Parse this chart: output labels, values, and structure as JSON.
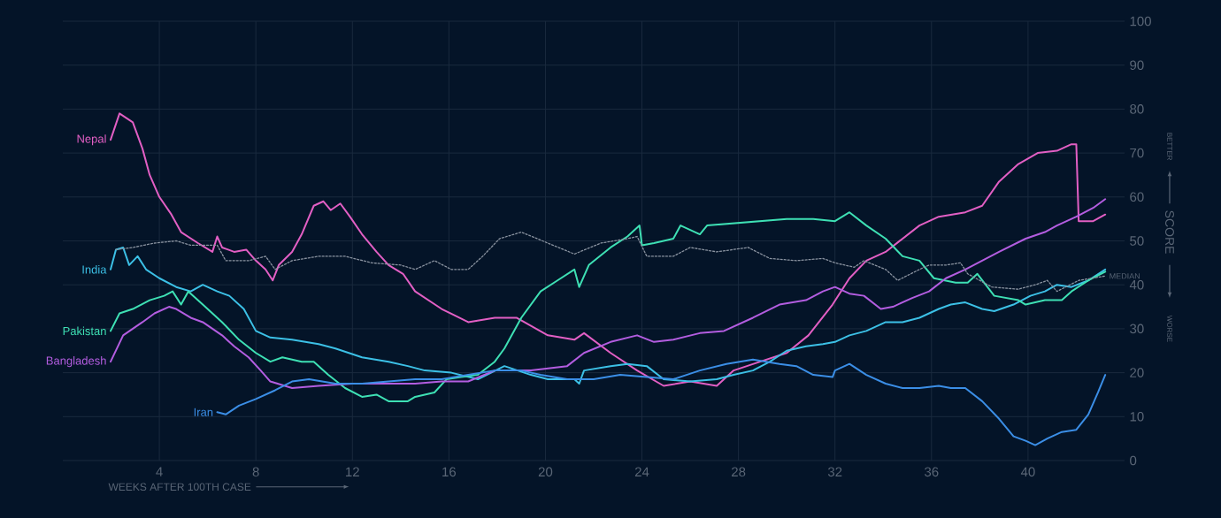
{
  "chart_data": {
    "type": "line",
    "xlabel": "WEEKS AFTER 100TH CASE",
    "ylabel": "SCORE",
    "annotations": [
      "BETTER",
      "WORSE"
    ],
    "xlim": [
      0,
      44
    ],
    "ylim": [
      0,
      100
    ],
    "xticks": [
      4,
      8,
      12,
      16,
      20,
      24,
      28,
      32,
      36,
      40
    ],
    "yticks": [
      0,
      10,
      20,
      30,
      40,
      50,
      60,
      70,
      80,
      90,
      100
    ],
    "grid": true,
    "legend": false,
    "marker": "none",
    "series": [
      {
        "name": "MEDIAN",
        "color": "#8a93a0",
        "line_style": "dotted",
        "x": [
          2.2,
          2.9,
          3.8,
          4.7,
          5.3,
          6.4,
          6.75,
          7.7,
          8.4,
          8.8,
          9.5,
          10.6,
          11.7,
          12.8,
          14.0,
          14.6,
          15.4,
          16.1,
          16.8,
          17.4,
          18.1,
          19.0,
          20.1,
          21.2,
          22.3,
          23.4,
          23.8,
          24.2,
          25.3,
          26.0,
          27.1,
          28.4,
          29.3,
          30.4,
          31.5,
          32.0,
          32.8,
          33.2,
          34.1,
          34.6,
          35.5,
          35.9,
          36.6,
          37.2,
          37.5,
          38.5,
          39.6,
          40.3,
          40.8,
          41.2,
          42.1,
          43.2
        ],
        "values": [
          48,
          48.5,
          49.5,
          50,
          49,
          49,
          45.5,
          45.5,
          46.5,
          43.5,
          45.5,
          46.5,
          46.5,
          45,
          44.5,
          43.5,
          45.5,
          43.5,
          43.5,
          46.5,
          50.5,
          52,
          49.5,
          47,
          49.5,
          50.5,
          51,
          46.5,
          46.5,
          48.5,
          47.5,
          48.5,
          46,
          45.5,
          46,
          45,
          44,
          45.5,
          43.5,
          41,
          43.5,
          44.5,
          44.5,
          45,
          42.5,
          39.5,
          39,
          40,
          41,
          38.5,
          41,
          42
        ]
      },
      {
        "name": "Nepal",
        "color": "#e25fc4",
        "line_style": "solid",
        "x": [
          1.98,
          2.35,
          2.9,
          3.3,
          3.6,
          4.0,
          4.5,
          4.9,
          5.6,
          6.2,
          6.4,
          6.6,
          7.1,
          7.6,
          8.0,
          8.4,
          8.7,
          8.95,
          9.5,
          9.9,
          10.4,
          10.8,
          11.1,
          11.5,
          11.9,
          12.4,
          13.0,
          13.5,
          14.1,
          14.6,
          15.7,
          16.8,
          17.9,
          18.8,
          20.1,
          21.2,
          21.6,
          22.7,
          23.8,
          24.9,
          26.0,
          27.1,
          27.8,
          28.9,
          30.0,
          30.9,
          31.9,
          32.6,
          33.3,
          34.1,
          34.8,
          35.5,
          36.3,
          37.4,
          38.1,
          38.8,
          39.6,
          40.4,
          41.2,
          41.8,
          42.0,
          42.1,
          42.7,
          43.2
        ],
        "values": [
          73,
          79,
          77,
          71,
          65,
          60,
          56,
          52,
          49.5,
          47.5,
          51,
          48.5,
          47.5,
          48,
          45.5,
          43.5,
          41,
          44.5,
          47.5,
          51.5,
          58,
          59,
          57,
          58.5,
          55.5,
          51.5,
          47.5,
          44.5,
          42.5,
          38.5,
          34.5,
          31.5,
          32.5,
          32.5,
          28.5,
          27.5,
          29,
          24.5,
          20.5,
          17,
          18,
          17,
          20.5,
          22.5,
          24.5,
          28.5,
          35.5,
          41.5,
          45.5,
          47.5,
          50.5,
          53.5,
          55.5,
          56.5,
          58,
          63.5,
          67.5,
          70,
          70.5,
          72,
          72,
          54.5,
          54.5,
          56
        ]
      },
      {
        "name": "India",
        "color": "#3cc0e6",
        "line_style": "solid",
        "x": [
          1.98,
          2.2,
          2.5,
          2.75,
          3.1,
          3.45,
          4.0,
          4.7,
          5.3,
          5.8,
          6.4,
          6.9,
          7.5,
          8.0,
          8.6,
          9.5,
          10.6,
          11.3,
          12.4,
          13.5,
          14.3,
          15.0,
          16.1,
          17.2,
          18.3,
          19.4,
          20.1,
          21.2,
          21.4,
          21.6,
          22.7,
          23.4,
          24.2,
          24.9,
          26.0,
          27.1,
          27.8,
          28.6,
          29.3,
          30.0,
          30.8,
          31.5,
          32.0,
          32.6,
          33.3,
          34.1,
          34.8,
          35.5,
          36.3,
          36.8,
          37.4,
          38.1,
          38.6,
          39.4,
          40.1,
          40.7,
          41.2,
          41.8,
          42.5,
          43.2
        ],
        "values": [
          43.5,
          48,
          48.5,
          44.5,
          46.5,
          43.5,
          41.5,
          39.5,
          38.5,
          40,
          38.5,
          37.5,
          34.5,
          29.5,
          28,
          27.5,
          26.5,
          25.5,
          23.5,
          22.5,
          21.5,
          20.5,
          20,
          18.5,
          21.5,
          19.5,
          18.5,
          18.5,
          17.5,
          20.5,
          21.5,
          22,
          21.5,
          18.5,
          18,
          18.5,
          19.5,
          20.5,
          22.5,
          25,
          26,
          26.5,
          27,
          28.5,
          29.5,
          31.5,
          31.5,
          32.5,
          34.5,
          35.5,
          36,
          34.5,
          34,
          35.5,
          37.5,
          38.5,
          40,
          39.5,
          41,
          43.5
        ]
      },
      {
        "name": "Pakistan",
        "color": "#3ee0b4",
        "line_style": "solid",
        "x": [
          1.98,
          2.35,
          2.9,
          3.6,
          4.2,
          4.55,
          4.9,
          5.2,
          5.8,
          6.6,
          7.3,
          8.0,
          8.6,
          9.1,
          9.9,
          10.4,
          11.0,
          11.7,
          12.4,
          13.0,
          13.5,
          14.3,
          14.6,
          15.4,
          15.9,
          16.5,
          17.2,
          17.9,
          18.3,
          19.0,
          19.8,
          20.5,
          21.2,
          21.4,
          21.8,
          22.7,
          23.4,
          23.9,
          24.0,
          24.5,
          25.3,
          25.6,
          26.4,
          26.7,
          27.8,
          28.9,
          30.0,
          31.1,
          32.0,
          32.6,
          33.3,
          34.1,
          34.8,
          35.5,
          36.1,
          37.0,
          37.5,
          37.9,
          38.6,
          39.6,
          39.9,
          40.7,
          41.4,
          41.8,
          42.5,
          43.2
        ],
        "values": [
          29.5,
          33.5,
          34.5,
          36.5,
          37.5,
          38.5,
          35.5,
          38.5,
          35.5,
          31.5,
          27.5,
          24.5,
          22.5,
          23.5,
          22.5,
          22.5,
          19.5,
          16.5,
          14.5,
          15,
          13.5,
          13.5,
          14.5,
          15.5,
          18.5,
          19,
          19.5,
          22.5,
          25.5,
          32.5,
          38.5,
          41,
          43.5,
          39.5,
          44.5,
          48.5,
          51,
          53.5,
          49,
          49.5,
          50.5,
          53.5,
          51.5,
          53.5,
          54,
          54.5,
          55,
          55,
          54.5,
          56.5,
          53.5,
          50.5,
          46.5,
          45.5,
          41.5,
          40.5,
          40.5,
          42.5,
          37.5,
          36.5,
          35.5,
          36.5,
          36.5,
          38.5,
          41,
          43
        ]
      },
      {
        "name": "Bangladesh",
        "color": "#b35de0",
        "line_style": "solid",
        "x": [
          1.98,
          2.5,
          3.3,
          3.8,
          4.4,
          4.7,
          5.3,
          5.8,
          6.6,
          7.1,
          7.7,
          8.2,
          8.6,
          9.5,
          10.6,
          12.0,
          13.5,
          14.6,
          15.7,
          16.8,
          17.9,
          19.4,
          20.9,
          21.6,
          22.7,
          23.8,
          24.5,
          25.3,
          26.4,
          27.4,
          28.6,
          29.7,
          30.8,
          31.5,
          32.0,
          32.6,
          33.2,
          33.9,
          34.4,
          35.2,
          35.9,
          36.6,
          37.4,
          38.1,
          38.8,
          39.9,
          40.7,
          41.2,
          42.0,
          42.7,
          43.2
        ],
        "values": [
          22.5,
          28.5,
          31.5,
          33.5,
          35,
          34.5,
          32.5,
          31.5,
          28.5,
          26,
          23.5,
          20.5,
          18,
          16.5,
          17,
          17.5,
          17.5,
          17.5,
          18,
          18,
          20.5,
          20.5,
          21.5,
          24.5,
          27,
          28.5,
          27,
          27.5,
          29,
          29.5,
          32.5,
          35.5,
          36.5,
          38.5,
          39.5,
          38,
          37.5,
          34.5,
          35,
          37,
          38.5,
          41.5,
          43.5,
          45.5,
          47.5,
          50.5,
          52,
          53.5,
          55.5,
          57.5,
          59.5
        ]
      },
      {
        "name": "Iran",
        "color": "#3b8ee6",
        "line_style": "solid",
        "x": [
          6.4,
          6.75,
          7.3,
          8.0,
          8.8,
          9.5,
          10.2,
          11.3,
          12.4,
          13.5,
          14.6,
          15.7,
          16.8,
          17.9,
          19.0,
          19.8,
          20.9,
          22.0,
          23.1,
          24.2,
          25.3,
          26.4,
          27.5,
          28.6,
          29.7,
          30.4,
          31.1,
          31.9,
          32.0,
          32.6,
          33.3,
          34.1,
          34.8,
          35.5,
          36.3,
          36.8,
          37.4,
          38.1,
          38.8,
          39.4,
          39.9,
          40.3,
          40.8,
          41.4,
          42.0,
          42.5,
          42.9,
          43.2
        ],
        "values": [
          11,
          10.5,
          12.5,
          14,
          16,
          18,
          18.5,
          17.5,
          17.5,
          18,
          18.5,
          18.5,
          19.5,
          20.5,
          20.5,
          19.5,
          18.5,
          18.5,
          19.5,
          19,
          18.5,
          20.5,
          22,
          23,
          22,
          21.5,
          19.5,
          19,
          20.5,
          22,
          19.5,
          17.5,
          16.5,
          16.5,
          17,
          16.5,
          16.5,
          13.5,
          9.5,
          5.5,
          4.5,
          3.5,
          5,
          6.5,
          7,
          10.5,
          15.5,
          19.5
        ]
      }
    ]
  }
}
